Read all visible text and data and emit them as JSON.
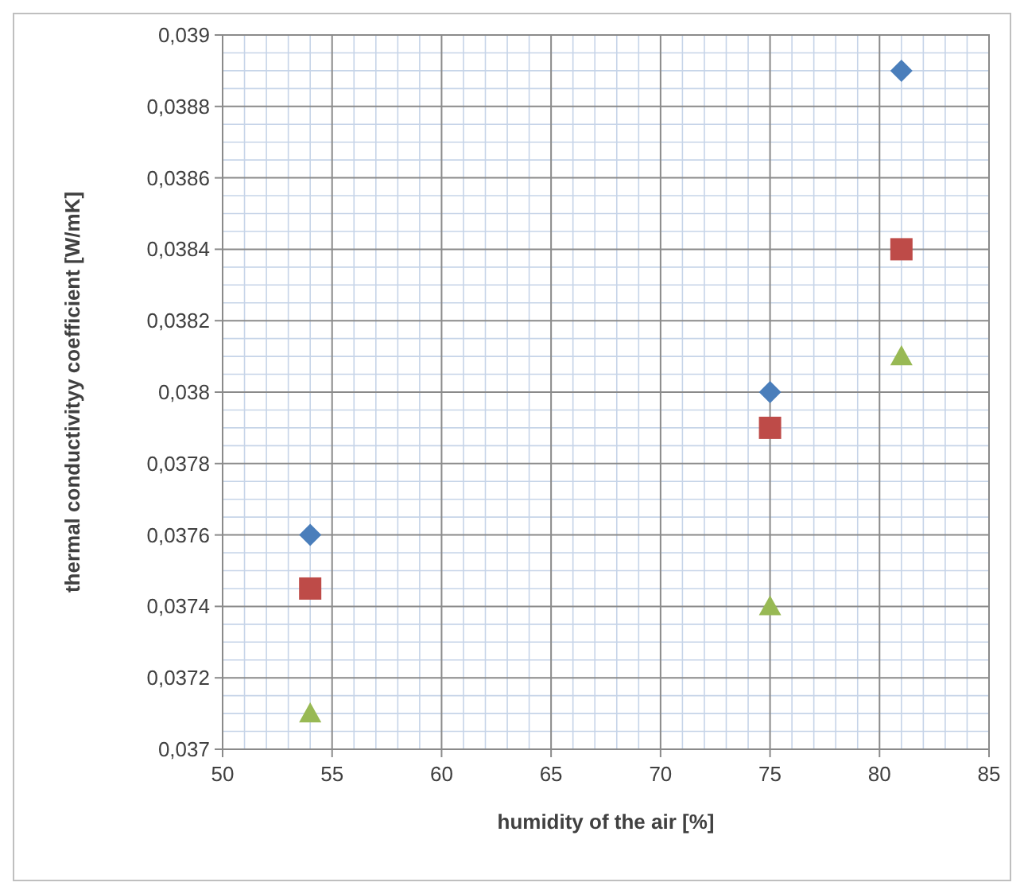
{
  "chart_data": {
    "type": "scatter",
    "xlabel": "humidity of the air [%]",
    "ylabel": "thermal conductivityy coefficient [W/mK]",
    "xlim": [
      50,
      85
    ],
    "xticks": [
      50,
      55,
      60,
      65,
      70,
      75,
      80,
      85
    ],
    "ylim": [
      0.037,
      0.039
    ],
    "yticks": [
      {
        "value": 0.037,
        "label": "0,037"
      },
      {
        "value": 0.0372,
        "label": "0,0372"
      },
      {
        "value": 0.0374,
        "label": "0,0374"
      },
      {
        "value": 0.0376,
        "label": "0,0376"
      },
      {
        "value": 0.0378,
        "label": "0,0378"
      },
      {
        "value": 0.038,
        "label": "0,038"
      },
      {
        "value": 0.0382,
        "label": "0,0382"
      },
      {
        "value": 0.0384,
        "label": "0,0384"
      },
      {
        "value": 0.0386,
        "label": "0,0386"
      },
      {
        "value": 0.0388,
        "label": "0,0388"
      },
      {
        "value": 0.039,
        "label": "0,039"
      }
    ],
    "grid": true,
    "series": [
      {
        "color": "#4a7ebb",
        "marker": "diamond",
        "x": [
          54,
          75,
          81
        ],
        "values": [
          0.0376,
          0.038,
          0.0389
        ]
      },
      {
        "color": "#be4b48",
        "marker": "square",
        "x": [
          54,
          75,
          81
        ],
        "values": [
          0.03745,
          0.0379,
          0.0384
        ]
      },
      {
        "color": "#98b954",
        "marker": "triangle",
        "x": [
          54,
          75,
          81
        ],
        "values": [
          0.0371,
          0.0374,
          0.0381
        ]
      }
    ]
  }
}
